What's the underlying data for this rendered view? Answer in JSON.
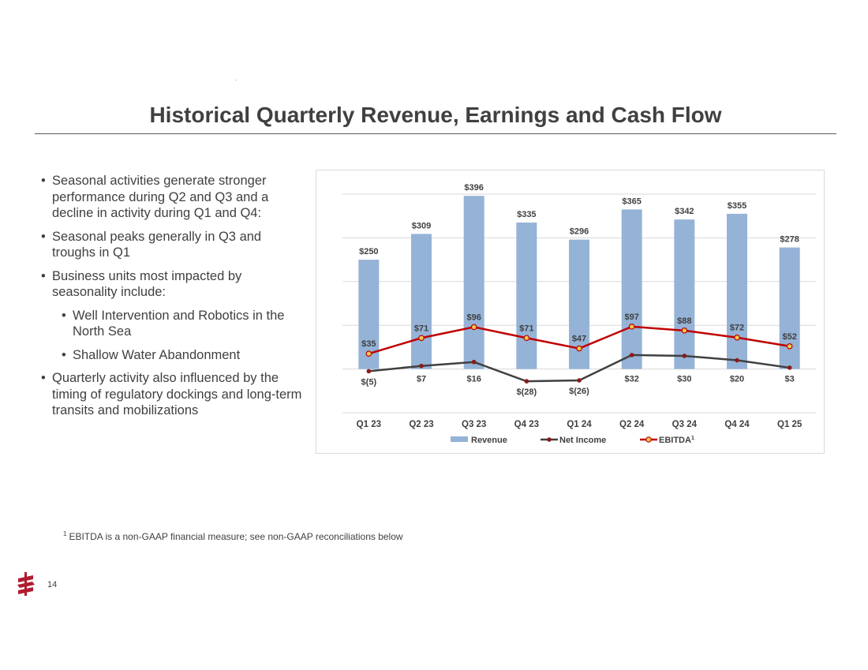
{
  "slide": {
    "title": "Historical Quarterly Revenue, Earnings and Cash Flow",
    "bullets": [
      {
        "level": 1,
        "text": "Seasonal activities generate stronger performance during Q2 and Q3 and a decline in activity during Q1 and Q4:"
      },
      {
        "level": 1,
        "text": "Seasonal peaks generally in Q3 and troughs in Q1"
      },
      {
        "level": 1,
        "text": "Business units most impacted by seasonality include:"
      },
      {
        "level": 2,
        "text": "Well Intervention and Robotics in the North Sea"
      },
      {
        "level": 2,
        "text": "Shallow Water Abandonment"
      },
      {
        "level": 1,
        "text": "Quarterly activity also influenced by the timing of regulatory dockings and long-term transits and mobilizations"
      }
    ],
    "footnote_marker": "1",
    "footnote": "EBITDA is a non-GAAP financial measure; see non-GAAP reconciliations below",
    "page_number": "14"
  },
  "colors": {
    "revenue": "#95b3d7",
    "net_income": "#404040",
    "net_income_marker": "#8b1a1a",
    "ebitda": "#c00000",
    "ebitda_marker_fill": "#f2c94c",
    "gridline": "#d9d9d9",
    "logo": "#b01c2e"
  },
  "chart_data": {
    "type": "bar",
    "title": "",
    "categories": [
      "Q1 23",
      "Q2 23",
      "Q3 23",
      "Q4 23",
      "Q1 24",
      "Q2 24",
      "Q3 24",
      "Q4 24",
      "Q1 25"
    ],
    "ylim": [
      -100,
      400
    ],
    "grid": true,
    "legend_position": "bottom",
    "series": [
      {
        "name": "Revenue",
        "type": "bar",
        "values": [
          250,
          309,
          396,
          335,
          296,
          365,
          342,
          355,
          278
        ],
        "labels": [
          "$250",
          "$309",
          "$396",
          "$335",
          "$296",
          "$365",
          "$342",
          "$355",
          "$278"
        ]
      },
      {
        "name": "Net Income",
        "type": "line",
        "values": [
          -5,
          7,
          16,
          -28,
          -26,
          32,
          30,
          20,
          3
        ],
        "labels": [
          "$(5)",
          "$7",
          "$16",
          "$(28)",
          "$(26)",
          "$32",
          "$30",
          "$20",
          "$3"
        ]
      },
      {
        "name": "EBITDA",
        "legend_suffix": "1",
        "type": "line",
        "values": [
          35,
          71,
          96,
          71,
          47,
          97,
          88,
          72,
          52
        ],
        "labels": [
          "$35",
          "$71",
          "$96",
          "$71",
          "$47",
          "$97",
          "$88",
          "$72",
          "$52"
        ]
      }
    ]
  }
}
